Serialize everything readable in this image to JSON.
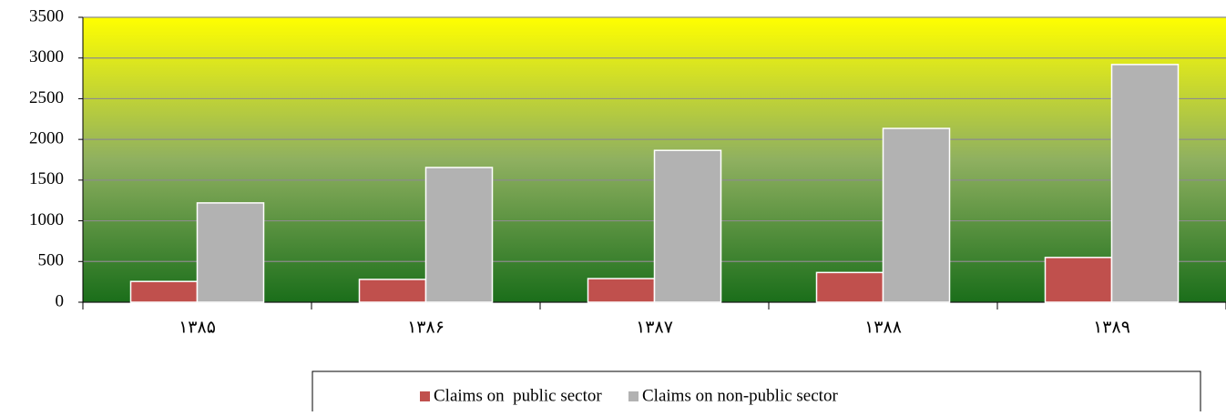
{
  "chart_data": {
    "type": "bar",
    "categories": [
      "۱۳۸۵",
      "۱۳۸۶",
      "۱۳۸۷",
      "۱۳۸۸",
      "۱۳۸۹"
    ],
    "series": [
      {
        "name": "Claims on  public sector",
        "color": "#c0504d",
        "values": [
          255,
          280,
          290,
          365,
          550
        ]
      },
      {
        "name": "Claims on non-public sector",
        "color": "#b2b2b2",
        "values": [
          1220,
          1655,
          1865,
          2135,
          2920
        ]
      }
    ],
    "ylim": [
      0,
      3500
    ],
    "yticks": [
      0,
      500,
      1000,
      1500,
      2000,
      2500,
      3000,
      3500
    ],
    "grid": true,
    "legend": "bottom"
  }
}
